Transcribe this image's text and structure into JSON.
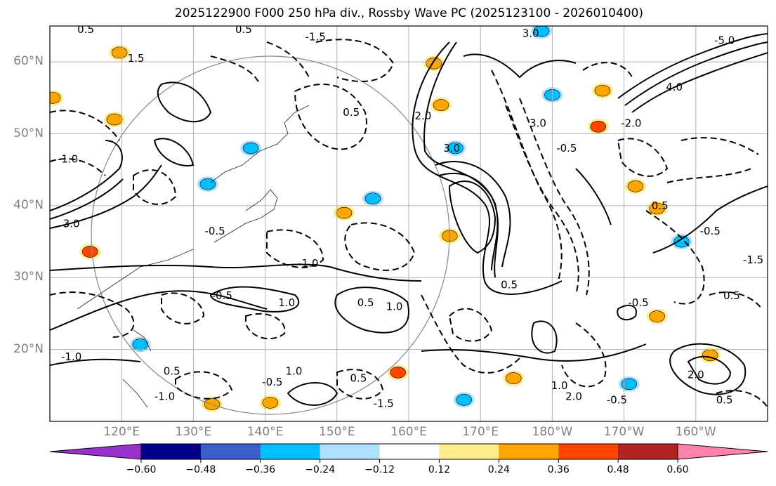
{
  "title": "2025122900 F000 250 hPa div., Rossby Wave PC (2025123100 - 2026010400)",
  "lat_labels": [
    {
      "text": "60°N",
      "lat": 60
    },
    {
      "text": "50°N",
      "lat": 50
    },
    {
      "text": "40°N",
      "lat": 40
    },
    {
      "text": "30°N",
      "lat": 30
    },
    {
      "text": "20°N",
      "lat": 20
    }
  ],
  "lon_labels": [
    {
      "text": "120°E",
      "lon": 120
    },
    {
      "text": "130°E",
      "lon": 130
    },
    {
      "text": "140°E",
      "lon": 140
    },
    {
      "text": "150°E",
      "lon": 150
    },
    {
      "text": "160°E",
      "lon": 160
    },
    {
      "text": "170°E",
      "lon": 170
    },
    {
      "text": "180°W",
      "lon": 180
    },
    {
      "text": "170°W",
      "lon": 190
    },
    {
      "text": "160°W",
      "lon": 200
    }
  ],
  "extent": {
    "lon": [
      110,
      210
    ],
    "lat": [
      10,
      65
    ]
  },
  "colorbar": {
    "colors": [
      "#9932cc",
      "#00008b",
      "#3a5fcd",
      "#00bfff",
      "#b0e0ff",
      "#ffffff",
      "#ffec8b",
      "#ffa500",
      "#ff4500",
      "#b22222",
      "#ff82ab"
    ],
    "ticks": [
      "−0.60",
      "−0.48",
      "−0.36",
      "−0.24",
      "−0.12",
      "0.12",
      "0.24",
      "0.36",
      "0.48",
      "0.60"
    ]
  },
  "shaded": [
    {
      "lon": 119.7,
      "lat": 61.3,
      "v": 0.3
    },
    {
      "lon": 119,
      "lat": 52,
      "v": 0.25
    },
    {
      "lon": 110.4,
      "lat": 55,
      "v": 0.3
    },
    {
      "lon": 115.6,
      "lat": 33.6,
      "v": 0.4
    },
    {
      "lon": 151,
      "lat": 39,
      "v": 0.3
    },
    {
      "lon": 155,
      "lat": 41,
      "v": -0.3
    },
    {
      "lon": 158.5,
      "lat": 16.8,
      "v": 0.4
    },
    {
      "lon": 167.7,
      "lat": 13,
      "v": -0.3
    },
    {
      "lon": 174.6,
      "lat": 16,
      "v": 0.3
    },
    {
      "lon": 186.4,
      "lat": 51,
      "v": 0.4
    },
    {
      "lon": 191.6,
      "lat": 42.7,
      "v": 0.3
    },
    {
      "lon": 194.6,
      "lat": 39.6,
      "v": 0.3
    },
    {
      "lon": 198,
      "lat": 35,
      "v": -0.3
    },
    {
      "lon": 163.5,
      "lat": 59.8,
      "v": 0.3
    },
    {
      "lon": 164.5,
      "lat": 54,
      "v": 0.3
    },
    {
      "lon": 178.5,
      "lat": 64.3,
      "v": -0.3
    },
    {
      "lon": 180,
      "lat": 55.4,
      "v": -0.3
    },
    {
      "lon": 132.6,
      "lat": 12.4,
      "v": 0.3
    },
    {
      "lon": 140.7,
      "lat": 12.6,
      "v": 0.3
    },
    {
      "lon": 122.6,
      "lat": 20.7,
      "v": -0.3
    },
    {
      "lon": 132,
      "lat": 43,
      "v": -0.3
    },
    {
      "lon": 138,
      "lat": 48,
      "v": -0.3
    },
    {
      "lon": 202,
      "lat": 19.2,
      "v": 0.3
    },
    {
      "lon": 194.6,
      "lat": 24.6,
      "v": 0.3
    },
    {
      "lon": 190.7,
      "lat": 15.2,
      "v": -0.3
    },
    {
      "lon": 165.7,
      "lat": 35.8,
      "v": 0.3
    },
    {
      "lon": 166.5,
      "lat": 48,
      "v": -0.3
    },
    {
      "lon": 187,
      "lat": 56,
      "v": 0.3
    }
  ],
  "contour_labels": [
    {
      "t": "0.5",
      "lon": 115,
      "lat": 64
    },
    {
      "t": "0.5",
      "lon": 137,
      "lat": 64
    },
    {
      "t": "-1.5",
      "lon": 147,
      "lat": 63
    },
    {
      "t": "1.5",
      "lon": 122,
      "lat": 60
    },
    {
      "t": "0.5",
      "lon": 152,
      "lat": 52.5
    },
    {
      "t": "-1.0",
      "lon": 112.5,
      "lat": 46
    },
    {
      "t": "3.0",
      "lon": 113,
      "lat": 37
    },
    {
      "t": "-0.5",
      "lon": 133,
      "lat": 36
    },
    {
      "t": "-1.0",
      "lon": 146,
      "lat": 31.5
    },
    {
      "t": "-0.5",
      "lon": 134,
      "lat": 27
    },
    {
      "t": "1.0",
      "lon": 143,
      "lat": 26
    },
    {
      "t": "0.5",
      "lon": 154,
      "lat": 26
    },
    {
      "t": "1.0",
      "lon": 158,
      "lat": 25.5
    },
    {
      "t": "1.0",
      "lon": 144,
      "lat": 16.5
    },
    {
      "t": "-0.5",
      "lon": 141,
      "lat": 15
    },
    {
      "t": "0.5",
      "lon": 153,
      "lat": 15.5
    },
    {
      "t": "-1.5",
      "lon": 156.5,
      "lat": 12
    },
    {
      "t": "2.0",
      "lon": 162,
      "lat": 52
    },
    {
      "t": "3.0",
      "lon": 166,
      "lat": 47.5
    },
    {
      "t": "3.0",
      "lon": 177,
      "lat": 63.5
    },
    {
      "t": "3.0",
      "lon": 178,
      "lat": 51
    },
    {
      "t": "-0.5",
      "lon": 182,
      "lat": 47.5
    },
    {
      "t": "0.5",
      "lon": 174,
      "lat": 28.5
    },
    {
      "t": "1.0",
      "lon": 181,
      "lat": 14.5
    },
    {
      "t": "4.0",
      "lon": 197,
      "lat": 56
    },
    {
      "t": "-5.0",
      "lon": 204,
      "lat": 62.5
    },
    {
      "t": "0.5",
      "lon": 195,
      "lat": 39.5
    },
    {
      "t": "-0.5",
      "lon": 202,
      "lat": 36
    },
    {
      "t": "-1.5",
      "lon": 208,
      "lat": 32
    },
    {
      "t": "0.5",
      "lon": 205,
      "lat": 27
    },
    {
      "t": "-2.0",
      "lon": 191,
      "lat": 51
    },
    {
      "t": "2.0",
      "lon": 200,
      "lat": 16
    },
    {
      "t": "0.5",
      "lon": 204,
      "lat": 12.5
    },
    {
      "t": "-0.5",
      "lon": 189,
      "lat": 12.5
    },
    {
      "t": "2.0",
      "lon": 183,
      "lat": 13
    },
    {
      "t": "-1.0",
      "lon": 126,
      "lat": 13
    },
    {
      "t": "0.5",
      "lon": 127,
      "lat": 16.5
    },
    {
      "t": "-1.0",
      "lon": 113,
      "lat": 18.5
    },
    {
      "t": "-0.5",
      "lon": 192,
      "lat": 26
    }
  ]
}
